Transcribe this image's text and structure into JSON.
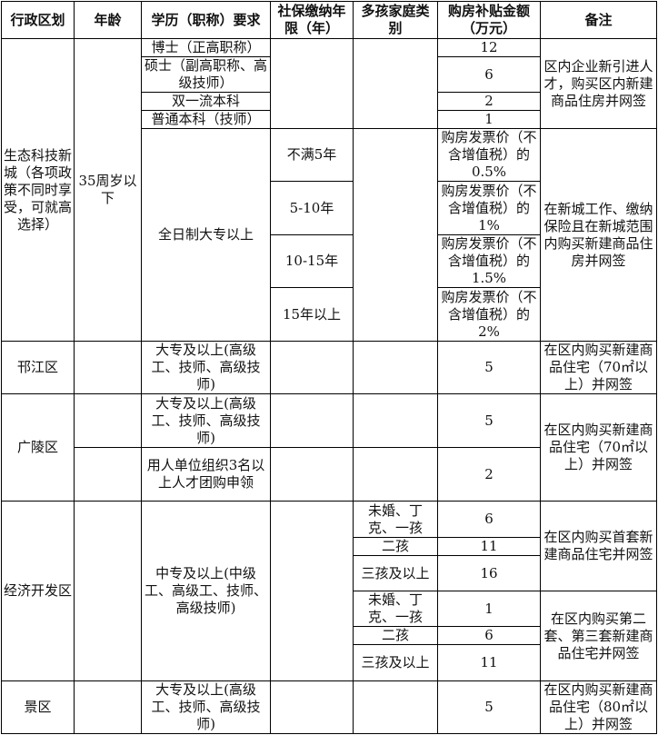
{
  "header": {
    "region": "行政区划",
    "age": "年龄",
    "education": "学历（职称）要求",
    "social_years": "社保缴纳年限（年）",
    "family": "多孩家庭类别",
    "subsidy": "购房补贴金额（万元）",
    "remark": "备注"
  },
  "eco_city": {
    "region": "生态科技新城（各项政策不同时享受，可就高选择）",
    "age": "35周岁以下",
    "degrees": [
      {
        "education": "博士（正高职称）",
        "subsidy": "12"
      },
      {
        "education": "硕士（副高职称、高级技师）",
        "subsidy": "6"
      },
      {
        "education": "双一流本科",
        "subsidy": "2"
      },
      {
        "education": "普通本科（技师）",
        "subsidy": "1"
      }
    ],
    "degrees_remark": "区内企业新引进人才，购买区内新建商品住房并网签",
    "college_education": "全日制大专以上",
    "years": [
      {
        "social_years": "不满5年",
        "subsidy": "购房发票价（不含增值税）的0.5%"
      },
      {
        "social_years": "5-10年",
        "subsidy": "购房发票价（不含增值税）的1%"
      },
      {
        "social_years": "10-15年",
        "subsidy": "购房发票价（不含增值税）的1.5%"
      },
      {
        "social_years": "15年以上",
        "subsidy": "购房发票价（不含增值税）的2%"
      }
    ],
    "years_remark": "在新城工作、缴纳保险且在新城范围内购买新建商品住房并网签"
  },
  "hanjiang": {
    "region": "邗江区",
    "education": "大专及以上(高级工、技师、高级技师)",
    "subsidy": "5",
    "remark": "在区内购买新建商品住宅（70㎡以上）并网签"
  },
  "guangling": {
    "region": "广陵区",
    "rows": [
      {
        "education": "大专及以上(高级工、技师、高级技师)",
        "subsidy": "5"
      },
      {
        "education": "用人单位组织3名以上人才团购申领",
        "subsidy": "2"
      }
    ],
    "remark": "在区内购买新建商品住宅（70㎡以上）并网签"
  },
  "econ_zone": {
    "region": "经济开发区",
    "education": "中专及以上(中级工、高级工、技师、高级技师)",
    "first": [
      {
        "family": "未婚、丁克、一孩",
        "subsidy": "6"
      },
      {
        "family": "二孩",
        "subsidy": "11"
      },
      {
        "family": "三孩及以上",
        "subsidy": "16"
      }
    ],
    "first_remark": "在区内购买首套新建商品住宅并网签",
    "second": [
      {
        "family": "未婚、丁克、一孩",
        "subsidy": "1"
      },
      {
        "family": "二孩",
        "subsidy": "6"
      },
      {
        "family": "三孩及以上",
        "subsidy": "11"
      }
    ],
    "second_remark": "在区内购买第二套、第三套新建商品住宅并网签"
  },
  "scenic": {
    "region": "景区",
    "education": "大专及以上(高级工、技师、高级技师)",
    "subsidy": "5",
    "remark": "在区内购买新建商品住宅（80㎡以上）并网签"
  }
}
